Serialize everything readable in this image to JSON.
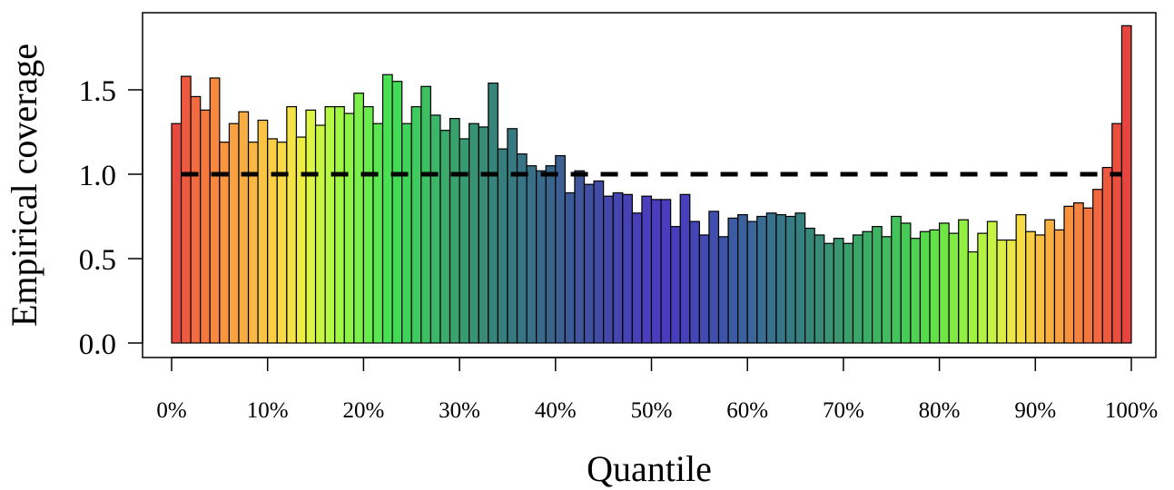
{
  "chart_data": {
    "type": "bar",
    "xlabel": "Quantile",
    "ylabel": "Empirical coverage",
    "xlim": [
      0,
      1
    ],
    "ylim": [
      0,
      1.9
    ],
    "x_ticks": [
      {
        "value": 0.0,
        "label": "0%"
      },
      {
        "value": 0.1,
        "label": "10%"
      },
      {
        "value": 0.2,
        "label": "20%"
      },
      {
        "value": 0.3,
        "label": "30%"
      },
      {
        "value": 0.4,
        "label": "40%"
      },
      {
        "value": 0.5,
        "label": "50%"
      },
      {
        "value": 0.6,
        "label": "60%"
      },
      {
        "value": 0.7,
        "label": "70%"
      },
      {
        "value": 0.8,
        "label": "80%"
      },
      {
        "value": 0.9,
        "label": "90%"
      },
      {
        "value": 1.0,
        "label": "100%"
      }
    ],
    "y_ticks": [
      {
        "value": 0.0,
        "label": "0.0"
      },
      {
        "value": 0.5,
        "label": "0.5"
      },
      {
        "value": 1.0,
        "label": "1.0"
      },
      {
        "value": 1.5,
        "label": "1.5"
      }
    ],
    "reference_line": {
      "y": 1.0,
      "x_start": 0.01,
      "x_end": 0.99,
      "style": "dashed",
      "color": "#000000"
    },
    "bins": 100,
    "values": [
      1.3,
      1.58,
      1.46,
      1.38,
      1.57,
      1.19,
      1.3,
      1.37,
      1.19,
      1.32,
      1.21,
      1.19,
      1.4,
      1.22,
      1.38,
      1.29,
      1.4,
      1.4,
      1.36,
      1.48,
      1.4,
      1.3,
      1.59,
      1.55,
      1.3,
      1.4,
      1.52,
      1.35,
      1.26,
      1.33,
      1.21,
      1.3,
      1.28,
      1.54,
      1.15,
      1.27,
      1.12,
      1.05,
      1.02,
      1.05,
      1.11,
      0.89,
      1.02,
      0.94,
      0.96,
      0.87,
      0.89,
      0.88,
      0.77,
      0.87,
      0.85,
      0.85,
      0.69,
      0.88,
      0.72,
      0.64,
      0.78,
      0.63,
      0.74,
      0.76,
      0.72,
      0.75,
      0.77,
      0.76,
      0.75,
      0.77,
      0.68,
      0.64,
      0.59,
      0.62,
      0.59,
      0.64,
      0.66,
      0.69,
      0.63,
      0.75,
      0.71,
      0.62,
      0.66,
      0.67,
      0.71,
      0.65,
      0.73,
      0.54,
      0.65,
      0.72,
      0.61,
      0.61,
      0.76,
      0.66,
      0.64,
      0.73,
      0.67,
      0.81,
      0.83,
      0.8,
      0.91,
      1.04,
      1.3,
      1.88
    ],
    "colors": [
      "#e8493f",
      "#ee5a3f",
      "#f26a3f",
      "#f5793f",
      "#f6883f",
      "#f79540",
      "#f8a141",
      "#f8ac42",
      "#f9b843",
      "#f9c444",
      "#f9cf45",
      "#f8da46",
      "#f5e247",
      "#ecec45",
      "#dcf443",
      "#c9f642",
      "#b6f843",
      "#a2f745",
      "#8ef347",
      "#7cef4a",
      "#6aeb4d",
      "#59e651",
      "#4ae054",
      "#43da57",
      "#3fd35a",
      "#3dca5e",
      "#3cc062",
      "#3bb566",
      "#3aab6a",
      "#39a26d",
      "#389a71",
      "#389274",
      "#378b77",
      "#37857a",
      "#377f7d",
      "#377980",
      "#387483",
      "#396f87",
      "#3a6a8a",
      "#3b648d",
      "#3d5f92",
      "#3e5a96",
      "#40559b",
      "#4150a0",
      "#434ca5",
      "#4448aa",
      "#4645af",
      "#4742b4",
      "#4840b8",
      "#493ebc",
      "#493cbe",
      "#493cbf",
      "#483ebd",
      "#4641bb",
      "#4445b7",
      "#424ab2",
      "#404fad",
      "#3e55a7",
      "#3c5ba2",
      "#3b619c",
      "#3a6797",
      "#396c91",
      "#38718c",
      "#377687",
      "#377b82",
      "#37807e",
      "#37867a",
      "#388c77",
      "#389273",
      "#399870",
      "#3a9f6c",
      "#3ba669",
      "#3cad66",
      "#3eb462",
      "#40bb5f",
      "#43c35b",
      "#47cb57",
      "#4dd252",
      "#56d94d",
      "#62e048",
      "#70e644",
      "#80eb42",
      "#91ef41",
      "#a3f241",
      "#b5f342",
      "#c8f244",
      "#daee46",
      "#ebe746",
      "#f6dc45",
      "#f8ce43",
      "#f8bf42",
      "#f8b041",
      "#f7a140",
      "#f6923f",
      "#f5833f",
      "#f3753f",
      "#f1673f",
      "#ee5a3f",
      "#ea4e3f",
      "#e6443e"
    ]
  }
}
